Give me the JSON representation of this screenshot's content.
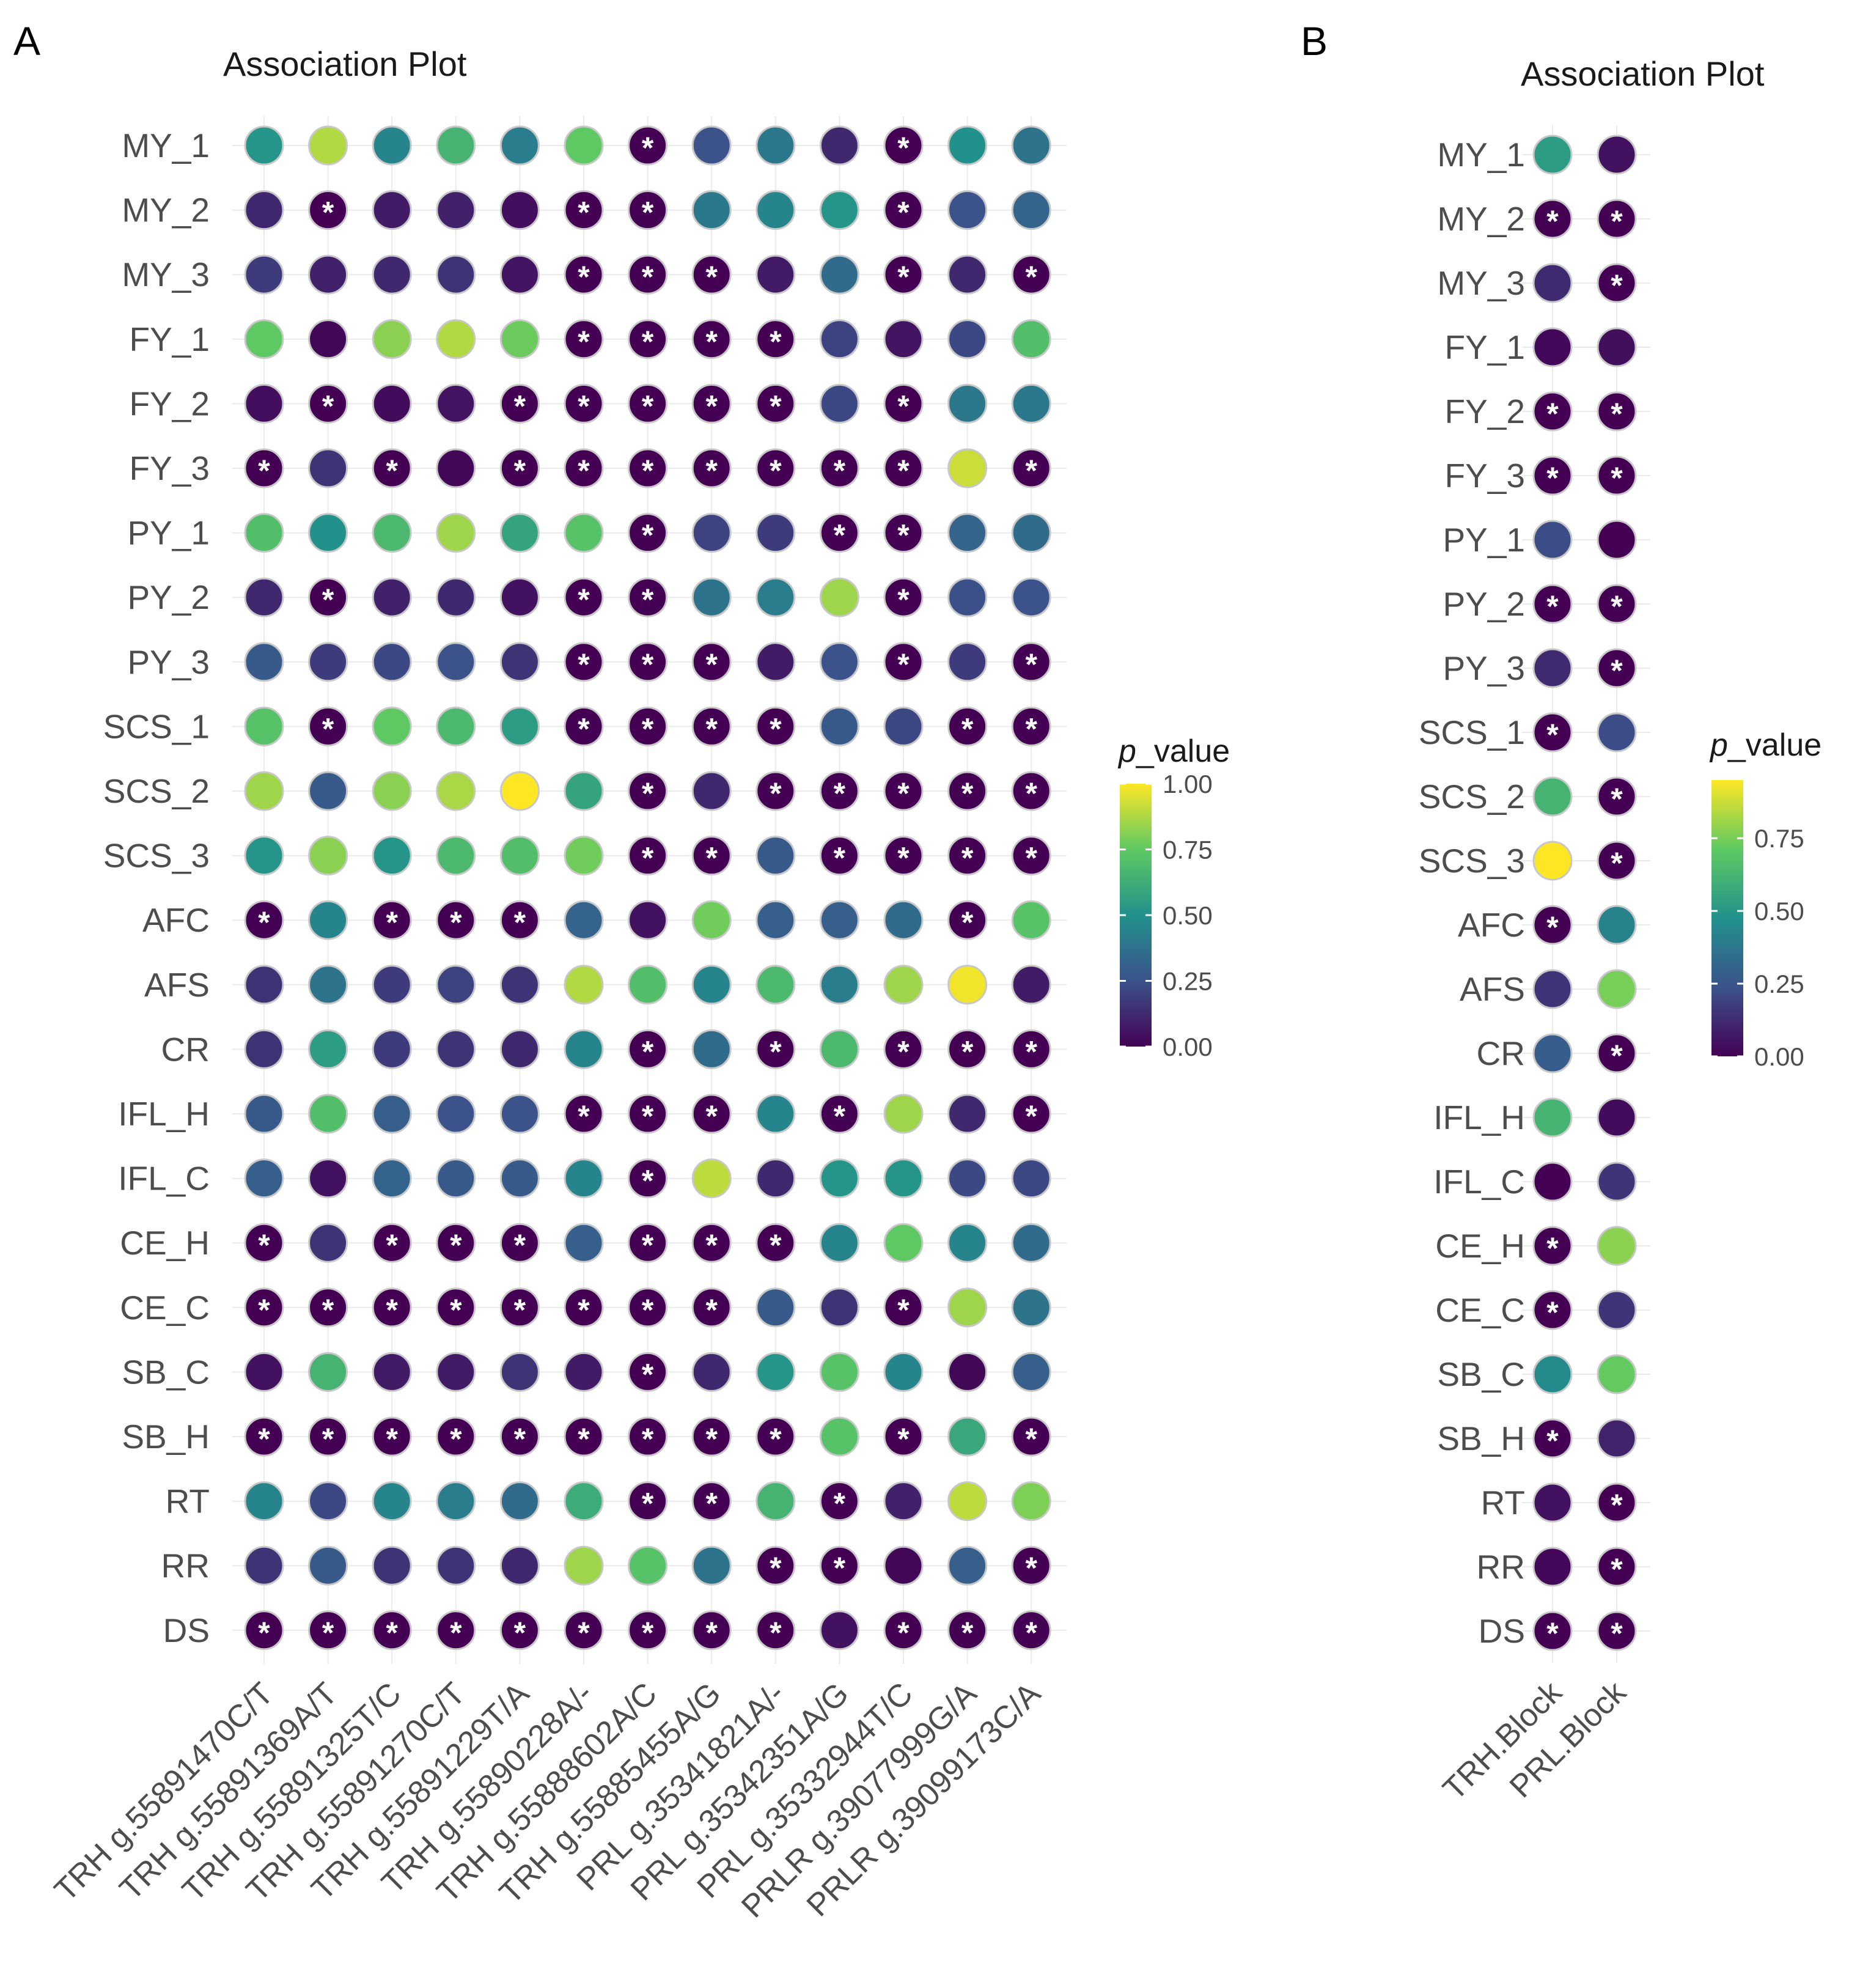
{
  "chart_data": [
    {
      "panel": "A",
      "type": "scatter",
      "title": "Association Plot",
      "xlabel": "",
      "ylabel": "",
      "significance_marker": "*",
      "categories": [
        "TRH g.55891470C/T",
        "TRH g.55891369A/T",
        "TRH g.55891325T/C",
        "TRH g.55891270C/T",
        "TRH g.55891229T/A",
        "TRH g.55890228A/-",
        "TRH g.55888602A/C",
        "TRH g.55885455A/G",
        "PRL g.35341821A/-",
        "PRL g.35342351A/G",
        "PRL g.35332944T/C",
        "PRLR g.39077999G/A",
        "PRLR g.39099173C/A"
      ],
      "traits": [
        "MY_1",
        "MY_2",
        "MY_3",
        "FY_1",
        "FY_2",
        "FY_3",
        "PY_1",
        "PY_2",
        "PY_3",
        "SCS_1",
        "SCS_2",
        "SCS_3",
        "AFC",
        "AFS",
        "CR",
        "IFL_H",
        "IFL_C",
        "CE_H",
        "CE_C",
        "SB_C",
        "SB_H",
        "RT",
        "RR",
        "DS"
      ],
      "values": [
        [
          0.52,
          0.88,
          0.45,
          0.65,
          0.42,
          0.75,
          0.0,
          0.25,
          0.4,
          0.12,
          0.0,
          0.5,
          0.38
        ],
        [
          0.12,
          0.0,
          0.08,
          0.1,
          0.04,
          0.0,
          0.0,
          0.4,
          0.45,
          0.52,
          0.0,
          0.25,
          0.32
        ],
        [
          0.18,
          0.1,
          0.12,
          0.15,
          0.06,
          0.0,
          0.0,
          0.0,
          0.08,
          0.35,
          0.0,
          0.12,
          0.0
        ],
        [
          0.75,
          0.02,
          0.82,
          0.88,
          0.77,
          0.0,
          0.0,
          0.0,
          0.0,
          0.2,
          0.06,
          0.22,
          0.7
        ],
        [
          0.04,
          0.0,
          0.03,
          0.06,
          0.0,
          0.0,
          0.0,
          0.0,
          0.0,
          0.22,
          0.0,
          0.4,
          0.4
        ],
        [
          0.0,
          0.15,
          0.0,
          0.02,
          0.0,
          0.0,
          0.0,
          0.0,
          0.0,
          0.0,
          0.0,
          0.92,
          0.0
        ],
        [
          0.7,
          0.5,
          0.68,
          0.85,
          0.58,
          0.72,
          0.0,
          0.2,
          0.18,
          0.0,
          0.0,
          0.32,
          0.35
        ],
        [
          0.12,
          0.0,
          0.1,
          0.12,
          0.05,
          0.0,
          0.0,
          0.38,
          0.42,
          0.85,
          0.0,
          0.24,
          0.25
        ],
        [
          0.28,
          0.18,
          0.22,
          0.25,
          0.15,
          0.0,
          0.0,
          0.0,
          0.08,
          0.25,
          0.0,
          0.18,
          0.0
        ],
        [
          0.72,
          0.0,
          0.75,
          0.68,
          0.55,
          0.0,
          0.0,
          0.0,
          0.0,
          0.28,
          0.22,
          0.0,
          0.0
        ],
        [
          0.85,
          0.28,
          0.82,
          0.87,
          1.0,
          0.58,
          0.0,
          0.12,
          0.0,
          0.0,
          0.0,
          0.0,
          0.0
        ],
        [
          0.52,
          0.82,
          0.52,
          0.68,
          0.7,
          0.78,
          0.0,
          0.0,
          0.28,
          0.0,
          0.0,
          0.0,
          0.0
        ],
        [
          0.0,
          0.45,
          0.0,
          0.0,
          0.0,
          0.32,
          0.05,
          0.78,
          0.3,
          0.3,
          0.35,
          0.0,
          0.72
        ],
        [
          0.15,
          0.38,
          0.18,
          0.2,
          0.15,
          0.88,
          0.7,
          0.45,
          0.68,
          0.42,
          0.85,
          0.98,
          0.08
        ],
        [
          0.15,
          0.55,
          0.18,
          0.15,
          0.12,
          0.45,
          0.0,
          0.35,
          0.0,
          0.68,
          0.0,
          0.0,
          0.0
        ],
        [
          0.28,
          0.7,
          0.3,
          0.25,
          0.25,
          0.0,
          0.0,
          0.0,
          0.45,
          0.0,
          0.85,
          0.12,
          0.0
        ],
        [
          0.3,
          0.05,
          0.32,
          0.28,
          0.28,
          0.45,
          0.0,
          0.9,
          0.12,
          0.52,
          0.52,
          0.22,
          0.22
        ],
        [
          0.0,
          0.15,
          0.0,
          0.0,
          0.0,
          0.3,
          0.0,
          0.0,
          0.0,
          0.45,
          0.75,
          0.45,
          0.35
        ],
        [
          0.0,
          0.0,
          0.0,
          0.0,
          0.0,
          0.0,
          0.0,
          0.0,
          0.28,
          0.15,
          0.0,
          0.85,
          0.38
        ],
        [
          0.05,
          0.65,
          0.08,
          0.08,
          0.15,
          0.08,
          0.0,
          0.12,
          0.52,
          0.72,
          0.45,
          0.02,
          0.3
        ],
        [
          0.0,
          0.0,
          0.0,
          0.0,
          0.0,
          0.0,
          0.0,
          0.0,
          0.0,
          0.72,
          0.0,
          0.6,
          0.0
        ],
        [
          0.45,
          0.22,
          0.45,
          0.42,
          0.35,
          0.62,
          0.0,
          0.0,
          0.65,
          0.0,
          0.1,
          0.9,
          0.8
        ],
        [
          0.15,
          0.28,
          0.15,
          0.15,
          0.12,
          0.85,
          0.72,
          0.38,
          0.0,
          0.0,
          0.02,
          0.3,
          0.0
        ],
        [
          0.0,
          0.0,
          0.0,
          0.0,
          0.0,
          0.0,
          0.0,
          0.0,
          0.0,
          0.05,
          0.0,
          0.0,
          0.0
        ]
      ],
      "significant": [
        [
          0,
          0,
          0,
          0,
          0,
          0,
          1,
          0,
          0,
          0,
          1,
          0,
          0
        ],
        [
          0,
          1,
          0,
          0,
          0,
          1,
          1,
          0,
          0,
          0,
          1,
          0,
          0
        ],
        [
          0,
          0,
          0,
          0,
          0,
          1,
          1,
          1,
          0,
          0,
          1,
          0,
          1
        ],
        [
          0,
          0,
          0,
          0,
          0,
          1,
          1,
          1,
          1,
          0,
          0,
          0,
          0
        ],
        [
          0,
          1,
          0,
          0,
          1,
          1,
          1,
          1,
          1,
          0,
          1,
          0,
          0
        ],
        [
          1,
          0,
          1,
          0,
          1,
          1,
          1,
          1,
          1,
          1,
          1,
          0,
          1
        ],
        [
          0,
          0,
          0,
          0,
          0,
          0,
          1,
          0,
          0,
          1,
          1,
          0,
          0
        ],
        [
          0,
          1,
          0,
          0,
          0,
          1,
          1,
          0,
          0,
          0,
          1,
          0,
          0
        ],
        [
          0,
          0,
          0,
          0,
          0,
          1,
          1,
          1,
          0,
          0,
          1,
          0,
          1
        ],
        [
          0,
          1,
          0,
          0,
          0,
          1,
          1,
          1,
          1,
          0,
          0,
          1,
          1
        ],
        [
          0,
          0,
          0,
          0,
          0,
          0,
          1,
          0,
          1,
          1,
          1,
          1,
          1
        ],
        [
          0,
          0,
          0,
          0,
          0,
          0,
          1,
          1,
          0,
          1,
          1,
          1,
          1
        ],
        [
          1,
          0,
          1,
          1,
          1,
          0,
          0,
          0,
          0,
          0,
          0,
          1,
          0
        ],
        [
          0,
          0,
          0,
          0,
          0,
          0,
          0,
          0,
          0,
          0,
          0,
          0,
          0
        ],
        [
          0,
          0,
          0,
          0,
          0,
          0,
          1,
          0,
          1,
          0,
          1,
          1,
          1
        ],
        [
          0,
          0,
          0,
          0,
          0,
          1,
          1,
          1,
          0,
          1,
          0,
          0,
          1
        ],
        [
          0,
          0,
          0,
          0,
          0,
          0,
          1,
          0,
          0,
          0,
          0,
          0,
          0
        ],
        [
          1,
          0,
          1,
          1,
          1,
          0,
          1,
          1,
          1,
          0,
          0,
          0,
          0
        ],
        [
          1,
          1,
          1,
          1,
          1,
          1,
          1,
          1,
          0,
          0,
          1,
          0,
          0
        ],
        [
          0,
          0,
          0,
          0,
          0,
          0,
          1,
          0,
          0,
          0,
          0,
          0,
          0
        ],
        [
          1,
          1,
          1,
          1,
          1,
          1,
          1,
          1,
          1,
          0,
          1,
          0,
          1
        ],
        [
          0,
          0,
          0,
          0,
          0,
          0,
          1,
          1,
          0,
          1,
          0,
          0,
          0
        ],
        [
          0,
          0,
          0,
          0,
          0,
          0,
          0,
          0,
          1,
          1,
          0,
          0,
          1
        ],
        [
          1,
          1,
          1,
          1,
          1,
          1,
          1,
          1,
          1,
          0,
          1,
          1,
          1
        ]
      ],
      "legend": {
        "title_italic": "p",
        "title_rest": "_value",
        "range": [
          0,
          1
        ],
        "ticks": [
          1.0,
          0.75,
          0.5,
          0.25,
          0.0
        ],
        "tick_labels": [
          "1.00",
          "0.75",
          "0.50",
          "0.25",
          "0.00"
        ],
        "position": "right"
      }
    },
    {
      "panel": "B",
      "type": "scatter",
      "title": "Association Plot",
      "xlabel": "",
      "ylabel": "",
      "significance_marker": "*",
      "categories": [
        "TRH.Block",
        "PRL.Block"
      ],
      "traits": [
        "MY_1",
        "MY_2",
        "MY_3",
        "FY_1",
        "FY_2",
        "FY_3",
        "PY_1",
        "PY_2",
        "PY_3",
        "SCS_1",
        "SCS_2",
        "SCS_3",
        "AFC",
        "AFS",
        "CR",
        "IFL_H",
        "IFL_C",
        "CE_H",
        "CE_C",
        "SB_C",
        "SB_H",
        "RT",
        "RR",
        "DS"
      ],
      "values": [
        [
          0.52,
          0.05
        ],
        [
          0.0,
          0.0
        ],
        [
          0.12,
          0.0
        ],
        [
          0.02,
          0.04
        ],
        [
          0.0,
          0.0
        ],
        [
          0.0,
          0.0
        ],
        [
          0.22,
          0.0
        ],
        [
          0.0,
          0.0
        ],
        [
          0.12,
          0.0
        ],
        [
          0.0,
          0.22
        ],
        [
          0.62,
          0.0
        ],
        [
          0.95,
          0.0
        ],
        [
          0.0,
          0.42
        ],
        [
          0.15,
          0.75
        ],
        [
          0.28,
          0.0
        ],
        [
          0.62,
          0.03
        ],
        [
          0.0,
          0.15
        ],
        [
          0.0,
          0.78
        ],
        [
          0.0,
          0.15
        ],
        [
          0.45,
          0.72
        ],
        [
          0.0,
          0.1
        ],
        [
          0.05,
          0.0
        ],
        [
          0.02,
          0.0
        ],
        [
          0.0,
          0.0
        ]
      ],
      "significant": [
        [
          0,
          0
        ],
        [
          1,
          1
        ],
        [
          0,
          1
        ],
        [
          0,
          0
        ],
        [
          1,
          1
        ],
        [
          1,
          1
        ],
        [
          0,
          0
        ],
        [
          1,
          1
        ],
        [
          0,
          1
        ],
        [
          1,
          0
        ],
        [
          0,
          1
        ],
        [
          0,
          1
        ],
        [
          1,
          0
        ],
        [
          0,
          0
        ],
        [
          0,
          1
        ],
        [
          0,
          0
        ],
        [
          0,
          0
        ],
        [
          1,
          0
        ],
        [
          1,
          0
        ],
        [
          0,
          0
        ],
        [
          1,
          0
        ],
        [
          0,
          1
        ],
        [
          0,
          1
        ],
        [
          1,
          1
        ]
      ],
      "legend": {
        "title_italic": "p",
        "title_rest": "_value",
        "range": [
          0,
          0.95
        ],
        "ticks": [
          0.75,
          0.5,
          0.25,
          0.0
        ],
        "tick_labels": [
          "0.75",
          "0.50",
          "0.25",
          "0.00"
        ],
        "position": "right"
      }
    }
  ],
  "colormap": {
    "name": "viridis",
    "stops": [
      "#440154",
      "#3b528b",
      "#21918c",
      "#5ec962",
      "#fde725"
    ]
  },
  "colors": {
    "point_border": "#c8c8c8",
    "grid": "#ebebeb",
    "text": "#4d4d4d",
    "title": "#1a1a1a",
    "asterisk": "#ffffff"
  }
}
